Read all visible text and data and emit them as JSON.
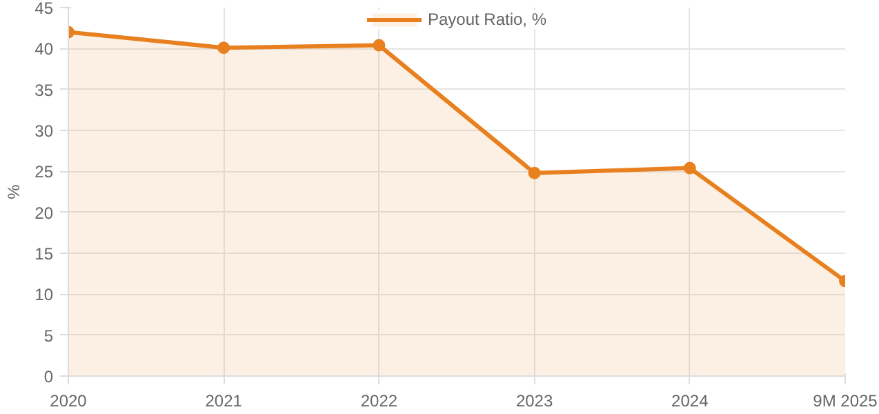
{
  "chart_data": {
    "type": "area",
    "ylabel": "%",
    "categories": [
      "2020",
      "2021",
      "2022",
      "2023",
      "2024",
      "9M 2025"
    ],
    "series": [
      {
        "name": "Payout Ratio, %",
        "color": "#e8801f",
        "values": [
          42.0,
          40.1,
          40.4,
          24.8,
          25.4,
          11.6
        ]
      }
    ],
    "ylim": [
      0,
      45
    ],
    "yticks": [
      0,
      5,
      10,
      15,
      20,
      25,
      30,
      35,
      40,
      45
    ],
    "grid": true,
    "legend": "top",
    "marker": "circle",
    "line_style": "solid"
  }
}
